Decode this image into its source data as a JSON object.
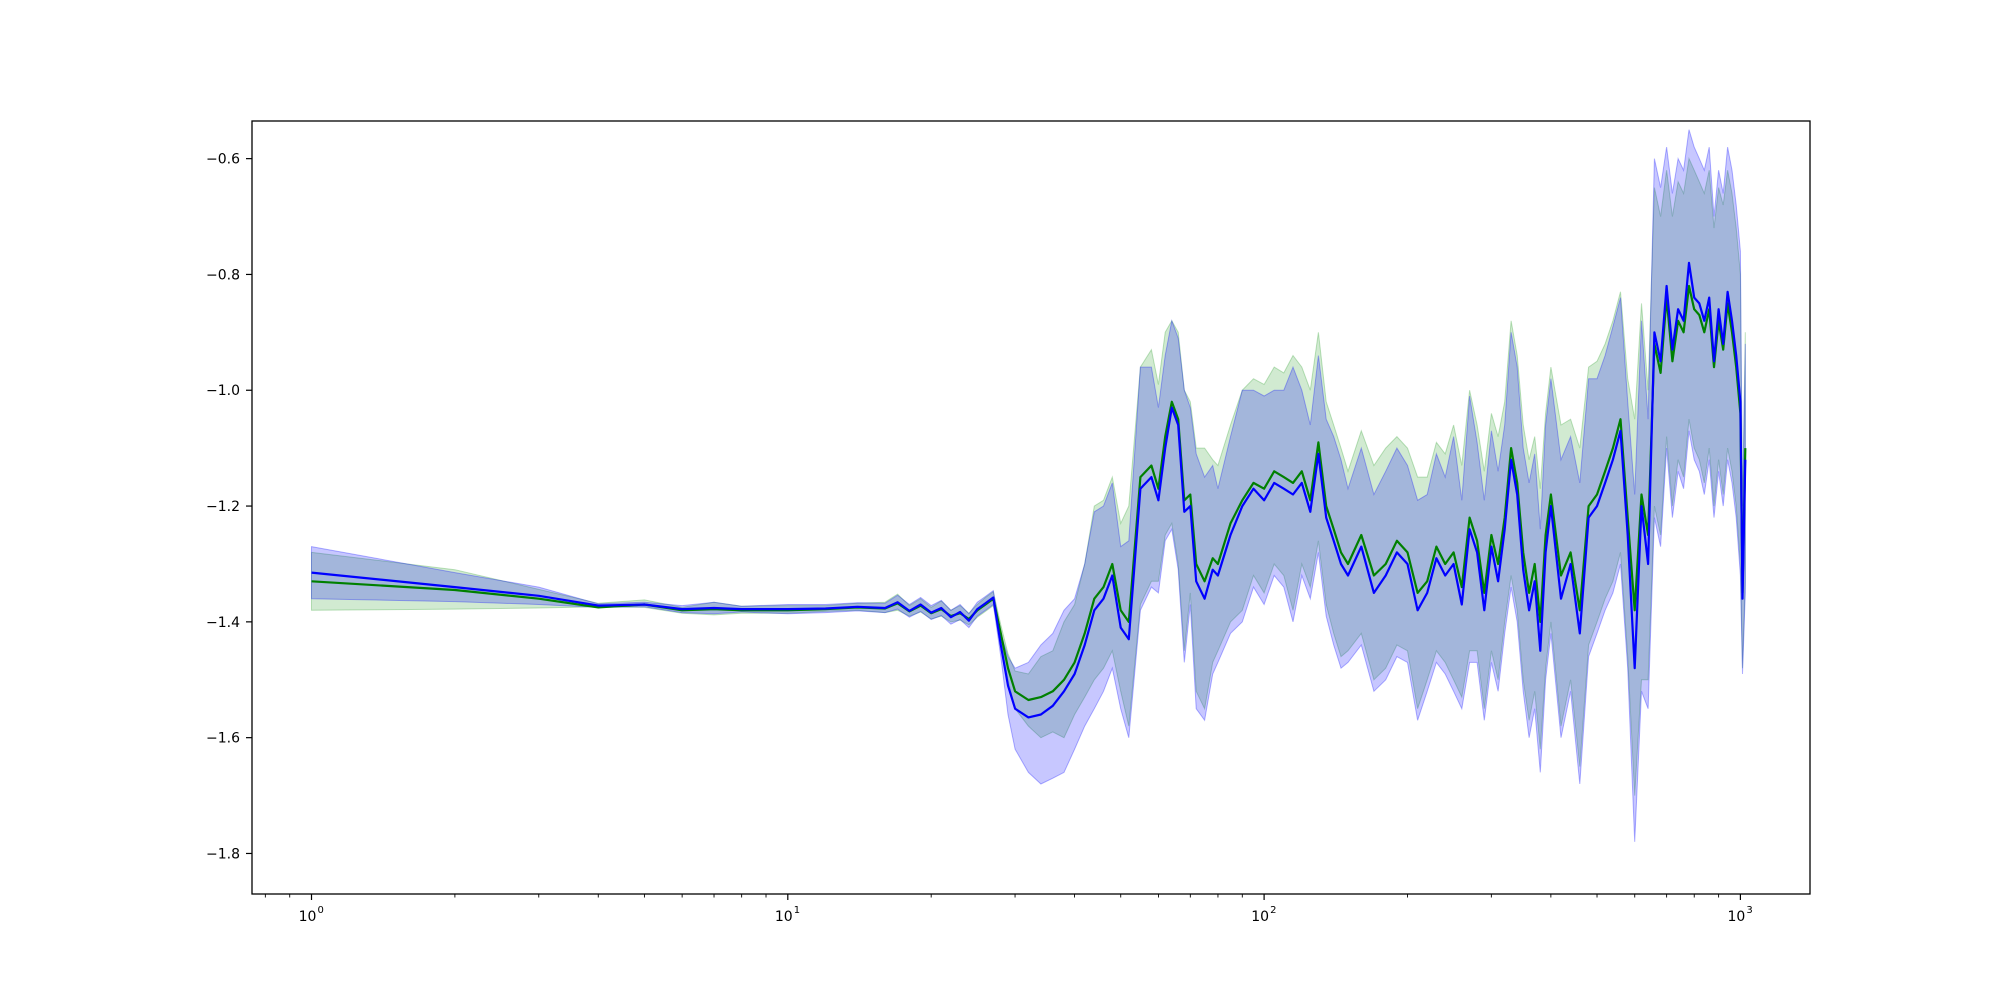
{
  "chart_data": {
    "type": "line",
    "title": "",
    "xlabel": "",
    "ylabel": "",
    "xscale": "log",
    "xlim": [
      0.75,
      1400
    ],
    "ylim": [
      -1.87,
      -0.535
    ],
    "grid": false,
    "legend": "none",
    "x_ticks": [
      {
        "value": 1,
        "base": "10",
        "exp": "0"
      },
      {
        "value": 10,
        "base": "10",
        "exp": "1"
      },
      {
        "value": 100,
        "base": "10",
        "exp": "2"
      },
      {
        "value": 1000,
        "base": "10",
        "exp": "3"
      }
    ],
    "y_ticks": [
      {
        "value": -0.6,
        "label": "−0.6"
      },
      {
        "value": -0.8,
        "label": "−0.8"
      },
      {
        "value": -1.0,
        "label": "−1.0"
      },
      {
        "value": -1.2,
        "label": "−1.2"
      },
      {
        "value": -1.4,
        "label": "−1.4"
      },
      {
        "value": -1.6,
        "label": "−1.6"
      },
      {
        "value": -1.8,
        "label": "−1.8"
      }
    ],
    "x": [
      1,
      2,
      3,
      4,
      5,
      6,
      7,
      8,
      10,
      12,
      14,
      16,
      17,
      18,
      19,
      20,
      21,
      22,
      23,
      24,
      25,
      26,
      27,
      28,
      29,
      30,
      32,
      34,
      36,
      38,
      40,
      42,
      44,
      46,
      48,
      50,
      52,
      55,
      58,
      60,
      62,
      64,
      66,
      68,
      70,
      72,
      75,
      78,
      80,
      85,
      90,
      95,
      100,
      105,
      110,
      115,
      120,
      125,
      130,
      135,
      140,
      145,
      150,
      160,
      170,
      180,
      190,
      200,
      210,
      220,
      230,
      240,
      250,
      260,
      270,
      280,
      290,
      300,
      310,
      320,
      330,
      340,
      350,
      360,
      370,
      380,
      390,
      400,
      420,
      440,
      460,
      480,
      500,
      520,
      540,
      560,
      580,
      600,
      620,
      640,
      660,
      680,
      700,
      720,
      740,
      760,
      780,
      800,
      820,
      840,
      860,
      880,
      900,
      920,
      940,
      960,
      980,
      1000,
      1010,
      1024
    ],
    "series": [
      {
        "color": "#008000",
        "band_color": "#2ca02c",
        "values": [
          -1.33,
          -1.345,
          -1.36,
          -1.375,
          -1.37,
          -1.38,
          -1.378,
          -1.38,
          -1.38,
          -1.378,
          -1.375,
          -1.377,
          -1.368,
          -1.382,
          -1.372,
          -1.385,
          -1.378,
          -1.39,
          -1.385,
          -1.395,
          -1.38,
          -1.37,
          -1.36,
          -1.42,
          -1.48,
          -1.52,
          -1.535,
          -1.53,
          -1.52,
          -1.5,
          -1.47,
          -1.42,
          -1.36,
          -1.34,
          -1.3,
          -1.38,
          -1.4,
          -1.15,
          -1.13,
          -1.17,
          -1.08,
          -1.02,
          -1.05,
          -1.19,
          -1.18,
          -1.3,
          -1.33,
          -1.29,
          -1.3,
          -1.23,
          -1.19,
          -1.16,
          -1.17,
          -1.14,
          -1.15,
          -1.16,
          -1.14,
          -1.19,
          -1.09,
          -1.2,
          -1.24,
          -1.28,
          -1.3,
          -1.25,
          -1.32,
          -1.3,
          -1.26,
          -1.28,
          -1.35,
          -1.33,
          -1.27,
          -1.3,
          -1.28,
          -1.34,
          -1.22,
          -1.26,
          -1.35,
          -1.25,
          -1.3,
          -1.22,
          -1.1,
          -1.16,
          -1.28,
          -1.35,
          -1.3,
          -1.4,
          -1.25,
          -1.18,
          -1.32,
          -1.28,
          -1.38,
          -1.2,
          -1.18,
          -1.14,
          -1.1,
          -1.05,
          -1.22,
          -1.38,
          -1.18,
          -1.25,
          -0.92,
          -0.97,
          -0.84,
          -0.95,
          -0.88,
          -0.9,
          -0.82,
          -0.86,
          -0.87,
          -0.9,
          -0.86,
          -0.96,
          -0.88,
          -0.93,
          -0.85,
          -0.9,
          -0.96,
          -1.04,
          -1.35,
          -1.1
        ],
        "lower": [
          -1.38,
          -1.378,
          -1.376,
          -1.374,
          -1.375,
          -1.385,
          -1.388,
          -1.385,
          -1.385,
          -1.382,
          -1.38,
          -1.384,
          -1.38,
          -1.39,
          -1.383,
          -1.395,
          -1.39,
          -1.4,
          -1.397,
          -1.405,
          -1.392,
          -1.382,
          -1.372,
          -1.43,
          -1.5,
          -1.55,
          -1.58,
          -1.6,
          -1.59,
          -1.6,
          -1.56,
          -1.53,
          -1.5,
          -1.48,
          -1.45,
          -1.52,
          -1.58,
          -1.37,
          -1.33,
          -1.33,
          -1.25,
          -1.23,
          -1.3,
          -1.45,
          -1.35,
          -1.52,
          -1.55,
          -1.47,
          -1.45,
          -1.4,
          -1.38,
          -1.32,
          -1.35,
          -1.3,
          -1.32,
          -1.38,
          -1.3,
          -1.34,
          -1.26,
          -1.37,
          -1.42,
          -1.46,
          -1.45,
          -1.42,
          -1.5,
          -1.48,
          -1.44,
          -1.45,
          -1.55,
          -1.5,
          -1.45,
          -1.47,
          -1.5,
          -1.53,
          -1.45,
          -1.45,
          -1.55,
          -1.45,
          -1.5,
          -1.4,
          -1.32,
          -1.38,
          -1.5,
          -1.57,
          -1.52,
          -1.62,
          -1.48,
          -1.4,
          -1.58,
          -1.5,
          -1.65,
          -1.44,
          -1.4,
          -1.36,
          -1.33,
          -1.28,
          -1.46,
          -1.7,
          -1.5,
          -1.5,
          -1.2,
          -1.25,
          -1.08,
          -1.2,
          -1.12,
          -1.15,
          -1.05,
          -1.1,
          -1.12,
          -1.16,
          -1.1,
          -1.2,
          -1.12,
          -1.18,
          -1.1,
          -1.14,
          -1.2,
          -1.3,
          -1.48,
          -1.33
        ],
        "upper": [
          -1.28,
          -1.31,
          -1.344,
          -1.368,
          -1.362,
          -1.375,
          -1.366,
          -1.373,
          -1.372,
          -1.372,
          -1.368,
          -1.366,
          -1.352,
          -1.372,
          -1.36,
          -1.375,
          -1.364,
          -1.38,
          -1.372,
          -1.385,
          -1.37,
          -1.358,
          -1.348,
          -1.405,
          -1.455,
          -1.485,
          -1.49,
          -1.46,
          -1.45,
          -1.4,
          -1.37,
          -1.3,
          -1.2,
          -1.19,
          -1.15,
          -1.23,
          -1.2,
          -0.96,
          -0.93,
          -0.99,
          -0.9,
          -0.88,
          -0.9,
          -1.0,
          -1.02,
          -1.1,
          -1.1,
          -1.12,
          -1.13,
          -1.06,
          -1.0,
          -0.98,
          -0.99,
          -0.96,
          -0.97,
          -0.94,
          -0.96,
          -1.0,
          -0.9,
          -1.02,
          -1.06,
          -1.1,
          -1.14,
          -1.07,
          -1.13,
          -1.1,
          -1.08,
          -1.1,
          -1.15,
          -1.15,
          -1.09,
          -1.11,
          -1.06,
          -1.13,
          -1.0,
          -1.06,
          -1.14,
          -1.04,
          -1.08,
          -1.02,
          -0.88,
          -0.94,
          -1.06,
          -1.12,
          -1.08,
          -1.17,
          -1.04,
          -0.96,
          -1.06,
          -1.05,
          -1.1,
          -0.96,
          -0.95,
          -0.92,
          -0.88,
          -0.83,
          -0.98,
          -1.05,
          -0.85,
          -1.0,
          -0.65,
          -0.7,
          -0.62,
          -0.7,
          -0.64,
          -0.66,
          -0.6,
          -0.62,
          -0.64,
          -0.66,
          -0.62,
          -0.72,
          -0.65,
          -0.68,
          -0.62,
          -0.66,
          -0.72,
          -0.8,
          -1.2,
          -0.9
        ]
      },
      {
        "color": "#0000ff",
        "band_color": "#0000ff",
        "values": [
          -1.315,
          -1.34,
          -1.355,
          -1.372,
          -1.37,
          -1.378,
          -1.376,
          -1.378,
          -1.378,
          -1.377,
          -1.374,
          -1.376,
          -1.366,
          -1.381,
          -1.37,
          -1.384,
          -1.376,
          -1.392,
          -1.383,
          -1.398,
          -1.378,
          -1.368,
          -1.358,
          -1.44,
          -1.51,
          -1.55,
          -1.565,
          -1.56,
          -1.545,
          -1.52,
          -1.49,
          -1.44,
          -1.38,
          -1.36,
          -1.32,
          -1.41,
          -1.43,
          -1.17,
          -1.15,
          -1.19,
          -1.1,
          -1.03,
          -1.06,
          -1.21,
          -1.2,
          -1.33,
          -1.36,
          -1.31,
          -1.32,
          -1.25,
          -1.2,
          -1.17,
          -1.19,
          -1.16,
          -1.17,
          -1.18,
          -1.16,
          -1.21,
          -1.11,
          -1.22,
          -1.26,
          -1.3,
          -1.32,
          -1.27,
          -1.35,
          -1.32,
          -1.28,
          -1.3,
          -1.38,
          -1.35,
          -1.29,
          -1.32,
          -1.3,
          -1.37,
          -1.24,
          -1.28,
          -1.38,
          -1.27,
          -1.33,
          -1.24,
          -1.12,
          -1.18,
          -1.31,
          -1.38,
          -1.33,
          -1.45,
          -1.28,
          -1.2,
          -1.36,
          -1.3,
          -1.42,
          -1.22,
          -1.2,
          -1.16,
          -1.12,
          -1.07,
          -1.25,
          -1.48,
          -1.2,
          -1.3,
          -0.9,
          -0.95,
          -0.82,
          -0.93,
          -0.86,
          -0.88,
          -0.78,
          -0.84,
          -0.85,
          -0.88,
          -0.84,
          -0.95,
          -0.86,
          -0.92,
          -0.83,
          -0.88,
          -0.94,
          -1.02,
          -1.36,
          -1.12
        ],
        "lower": [
          -1.36,
          -1.365,
          -1.37,
          -1.375,
          -1.374,
          -1.384,
          -1.386,
          -1.383,
          -1.386,
          -1.384,
          -1.381,
          -1.384,
          -1.378,
          -1.392,
          -1.382,
          -1.396,
          -1.389,
          -1.404,
          -1.396,
          -1.41,
          -1.39,
          -1.38,
          -1.37,
          -1.46,
          -1.56,
          -1.62,
          -1.66,
          -1.68,
          -1.67,
          -1.66,
          -1.62,
          -1.58,
          -1.55,
          -1.52,
          -1.48,
          -1.55,
          -1.6,
          -1.38,
          -1.34,
          -1.35,
          -1.26,
          -1.24,
          -1.31,
          -1.47,
          -1.37,
          -1.55,
          -1.57,
          -1.49,
          -1.47,
          -1.42,
          -1.4,
          -1.34,
          -1.37,
          -1.32,
          -1.34,
          -1.4,
          -1.32,
          -1.36,
          -1.28,
          -1.39,
          -1.44,
          -1.48,
          -1.47,
          -1.44,
          -1.52,
          -1.5,
          -1.46,
          -1.47,
          -1.57,
          -1.52,
          -1.47,
          -1.49,
          -1.52,
          -1.55,
          -1.47,
          -1.47,
          -1.57,
          -1.47,
          -1.52,
          -1.42,
          -1.34,
          -1.4,
          -1.52,
          -1.6,
          -1.55,
          -1.66,
          -1.5,
          -1.42,
          -1.6,
          -1.52,
          -1.68,
          -1.46,
          -1.42,
          -1.38,
          -1.35,
          -1.3,
          -1.48,
          -1.78,
          -1.52,
          -1.55,
          -1.22,
          -1.27,
          -1.1,
          -1.22,
          -1.14,
          -1.17,
          -1.07,
          -1.12,
          -1.14,
          -1.18,
          -1.12,
          -1.22,
          -1.14,
          -1.2,
          -1.12,
          -1.16,
          -1.22,
          -1.32,
          -1.49,
          -1.35
        ],
        "upper": [
          -1.27,
          -1.315,
          -1.34,
          -1.369,
          -1.366,
          -1.372,
          -1.366,
          -1.373,
          -1.37,
          -1.37,
          -1.367,
          -1.368,
          -1.354,
          -1.37,
          -1.358,
          -1.372,
          -1.363,
          -1.38,
          -1.37,
          -1.386,
          -1.366,
          -1.356,
          -1.346,
          -1.42,
          -1.46,
          -1.48,
          -1.47,
          -1.44,
          -1.42,
          -1.38,
          -1.36,
          -1.3,
          -1.21,
          -1.2,
          -1.16,
          -1.27,
          -1.26,
          -0.96,
          -0.96,
          -1.03,
          -0.94,
          -0.88,
          -0.91,
          -1.0,
          -1.03,
          -1.11,
          -1.15,
          -1.13,
          -1.17,
          -1.08,
          -1.0,
          -1.0,
          -1.01,
          -1.0,
          -1.0,
          -0.96,
          -1.0,
          -1.06,
          -0.94,
          -1.05,
          -1.08,
          -1.12,
          -1.17,
          -1.1,
          -1.18,
          -1.14,
          -1.1,
          -1.13,
          -1.19,
          -1.18,
          -1.11,
          -1.15,
          -1.08,
          -1.19,
          -1.01,
          -1.09,
          -1.19,
          -1.07,
          -1.14,
          -1.06,
          -0.9,
          -0.96,
          -1.1,
          -1.16,
          -1.11,
          -1.24,
          -1.06,
          -0.98,
          -1.12,
          -1.08,
          -1.16,
          -0.98,
          -0.98,
          -0.94,
          -0.89,
          -0.84,
          -1.02,
          -1.18,
          -0.88,
          -1.05,
          -0.6,
          -0.65,
          -0.58,
          -0.66,
          -0.6,
          -0.62,
          -0.55,
          -0.58,
          -0.6,
          -0.62,
          -0.58,
          -0.7,
          -0.62,
          -0.66,
          -0.58,
          -0.62,
          -0.68,
          -0.76,
          -1.23,
          -0.92
        ]
      }
    ]
  }
}
